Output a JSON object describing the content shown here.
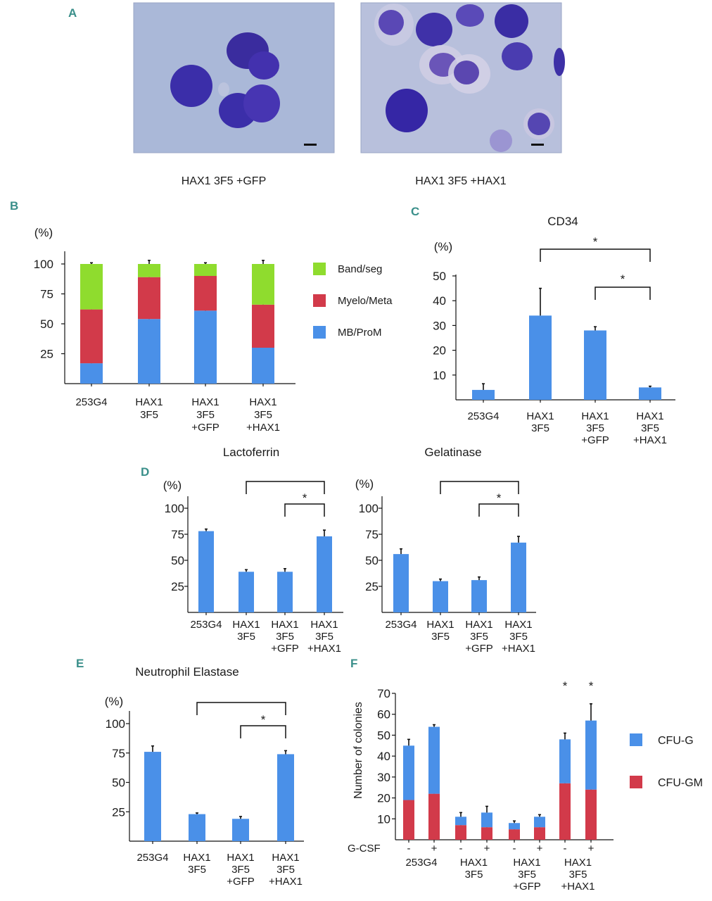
{
  "colors": {
    "bar_blue": "#4a90e8",
    "myelo_red": "#d23a4a",
    "band_green": "#8fdc2e",
    "cfu_g_blue": "#4a90e8",
    "cfu_gm_red": "#d23a4a",
    "panel_letter": "#3a8f8a",
    "micrograph_bg": "#a9b7d6",
    "cell_stain": "#3a2fa8"
  },
  "panels": {
    "a": {
      "letter": "A",
      "captions": [
        "HAX1 3F5\n+GFP",
        "HAX1 3F5\n+HAX1"
      ]
    },
    "b": {
      "letter": "B"
    },
    "c": {
      "letter": "C"
    },
    "d": {
      "letter": "D"
    },
    "e": {
      "letter": "E"
    },
    "f": {
      "letter": "F"
    }
  },
  "chart_data": [
    {
      "id": "B",
      "type": "bar",
      "stacked": true,
      "title": "",
      "ylabel": "(%)",
      "ylim": [
        0,
        100
      ],
      "yticks": [
        25,
        50,
        75,
        100
      ],
      "categories": [
        "253G4",
        "HAX1\n3F5",
        "HAX1\n3F5\n+GFP",
        "HAX1\n3F5\n+HAX1"
      ],
      "series": [
        {
          "name": "MB/ProM",
          "color": "#4a90e8",
          "values": [
            17,
            54,
            61,
            30
          ],
          "errors": [
            3,
            3,
            2,
            1
          ]
        },
        {
          "name": "Myelo/Meta",
          "color": "#d23a4a",
          "values": [
            45,
            35,
            29,
            36
          ],
          "errors": [
            3,
            4,
            2,
            3
          ]
        },
        {
          "name": "Band/seg",
          "color": "#8fdc2e",
          "values": [
            38,
            11,
            10,
            34
          ],
          "errors": [
            1,
            3,
            1,
            3
          ]
        }
      ],
      "legend": [
        "Band/seg",
        "Myelo/Meta",
        "MB/ProM"
      ]
    },
    {
      "id": "C",
      "type": "bar",
      "title": "CD34",
      "ylabel": "(%)",
      "ylim": [
        0,
        50
      ],
      "yticks": [
        10,
        20,
        30,
        40,
        50
      ],
      "categories": [
        "253G4",
        "HAX1\n3F5",
        "HAX1\n3F5\n+GFP",
        "HAX1\n3F5\n+HAX1"
      ],
      "values": [
        4,
        34,
        28,
        5
      ],
      "errors": [
        2.5,
        11,
        1.5,
        0.5
      ],
      "significance": [
        {
          "from": 1,
          "to": 3,
          "label": "*"
        },
        {
          "from": 2,
          "to": 3,
          "label": "*"
        }
      ]
    },
    {
      "id": "D1",
      "type": "bar",
      "title": "Lactoferrin",
      "ylabel": "(%)",
      "ylim": [
        0,
        100
      ],
      "yticks": [
        25,
        50,
        75,
        100
      ],
      "categories": [
        "253G4",
        "HAX1\n3F5",
        "HAX1\n3F5\n+GFP",
        "HAX1\n3F5\n+HAX1"
      ],
      "values": [
        78,
        39,
        39,
        73
      ],
      "errors": [
        2,
        2,
        3,
        6
      ],
      "significance": [
        {
          "from": 1,
          "to": 3,
          "label": ""
        },
        {
          "from": 2,
          "to": 3,
          "label": "*"
        }
      ]
    },
    {
      "id": "D2",
      "type": "bar",
      "title": "Gelatinase",
      "ylabel": "(%)",
      "ylim": [
        0,
        100
      ],
      "yticks": [
        25,
        50,
        75,
        100
      ],
      "categories": [
        "253G4",
        "HAX1\n3F5",
        "HAX1\n3F5\n+GFP",
        "HAX1\n3F5\n+HAX1"
      ],
      "values": [
        56,
        30,
        31,
        67
      ],
      "errors": [
        5,
        2,
        3,
        6
      ],
      "significance": [
        {
          "from": 1,
          "to": 3,
          "label": ""
        },
        {
          "from": 2,
          "to": 3,
          "label": "*"
        }
      ]
    },
    {
      "id": "E",
      "type": "bar",
      "title": "Neutrophil Elastase",
      "ylabel": "(%)",
      "ylim": [
        0,
        100
      ],
      "yticks": [
        25,
        50,
        75,
        100
      ],
      "categories": [
        "253G4",
        "HAX1\n3F5",
        "HAX1\n3F5\n+GFP",
        "HAX1\n3F5\n+HAX1"
      ],
      "values": [
        76,
        23,
        19,
        74
      ],
      "errors": [
        5,
        1,
        2,
        3
      ],
      "significance": [
        {
          "from": 1,
          "to": 3,
          "label": ""
        },
        {
          "from": 2,
          "to": 3,
          "label": "*"
        }
      ]
    },
    {
      "id": "F",
      "type": "bar",
      "stacked": true,
      "title": "",
      "ylabel": "Number of colonies",
      "ylim": [
        0,
        70
      ],
      "yticks": [
        10,
        20,
        30,
        40,
        50,
        60,
        70
      ],
      "xrow_label": "G-CSF",
      "bar_signs": [
        "-",
        "+",
        "-",
        "+",
        "-",
        "+",
        "-",
        "+"
      ],
      "groups": [
        "253G4",
        "HAX1\n3F5",
        "HAX1\n3F5\n+GFP",
        "HAX1\n3F5\n+HAX1"
      ],
      "series": [
        {
          "name": "CFU-GM",
          "color": "#d23a4a",
          "values": [
            19,
            22,
            7,
            6,
            5,
            6,
            27,
            24
          ],
          "errors": [
            1,
            1,
            1,
            1,
            1,
            1,
            5,
            2
          ]
        },
        {
          "name": "CFU-G",
          "color": "#4a90e8",
          "values": [
            26,
            32,
            4,
            7,
            3,
            5,
            21,
            33
          ],
          "errors": [
            3,
            1,
            2,
            3,
            1,
            1,
            3,
            8
          ]
        }
      ],
      "bar_asterisks": [
        "",
        "",
        "",
        "",
        "",
        "",
        "*",
        "*"
      ],
      "legend": [
        "CFU-G",
        "CFU-GM"
      ]
    }
  ]
}
